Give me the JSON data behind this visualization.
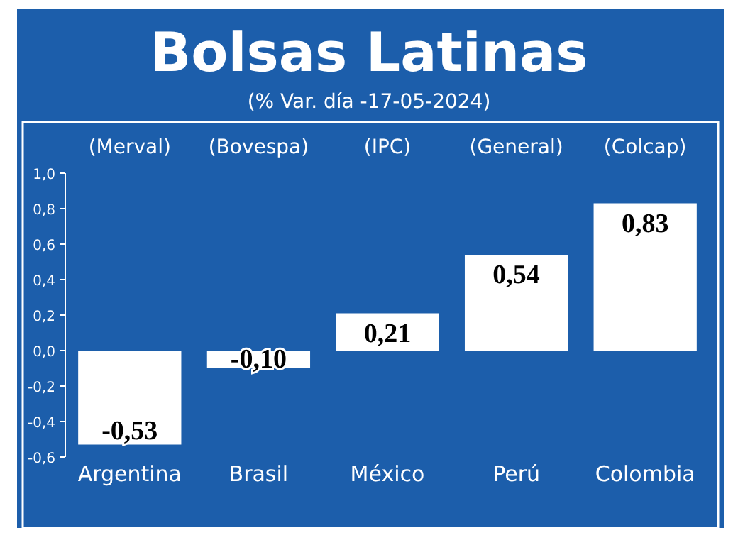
{
  "chart_data": {
    "type": "bar",
    "title": "Bolsas Latinas",
    "subtitle": "(% Var. día -17-05-2024)",
    "categories": [
      "Argentina",
      "Brasil",
      "México",
      "Perú",
      "Colombia"
    ],
    "annotations": [
      "(Merval)",
      "(Bovespa)",
      "(IPC)",
      "(General)",
      "(Colcap)"
    ],
    "values": [
      -0.53,
      -0.1,
      0.21,
      0.54,
      0.83
    ],
    "color": "#ffffff",
    "value_labels": [
      "-0,53",
      "-0,10",
      "0,21",
      "0,54",
      "0,83"
    ],
    "ylim": [
      -0.6,
      1.0
    ],
    "grid": false,
    "yticks": [
      {
        "value": -0.6,
        "label": "-0,6"
      },
      {
        "value": -0.4,
        "label": "-0,4"
      },
      {
        "value": -0.2,
        "label": "-0,2"
      },
      {
        "value": 0,
        "label": "0,0"
      },
      {
        "value": 0.2,
        "label": "0,2"
      },
      {
        "value": 0.4,
        "label": "0,4"
      },
      {
        "value": 0.6,
        "label": "0,6"
      },
      {
        "value": 0.8,
        "label": "0,8"
      },
      {
        "value": 1.0,
        "label": "1,0"
      }
    ]
  }
}
